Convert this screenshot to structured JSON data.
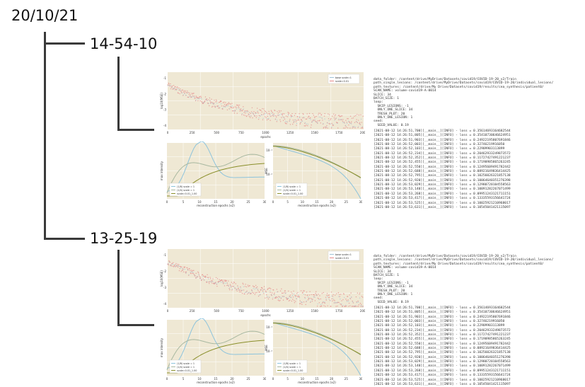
{
  "date_label": "20/10/21",
  "runs": [
    {
      "time_label": "14-54-10",
      "loss_plot": {
        "ylabel": "log10(MSE)",
        "xlabel": "epochs",
        "xticks": [
          "0",
          "250",
          "500",
          "750",
          "1000",
          "1250",
          "1500",
          "1750",
          "2000"
        ],
        "yticks": [
          "-1",
          "-2",
          "-3",
          "-4"
        ],
        "legend": [
          "base scale=1",
          "scale=0.01"
        ]
      },
      "intensity_plot": {
        "ylabel": "max intensity",
        "xlabel": "reconstruction epochs (x2)",
        "xticks": [
          "0",
          "5",
          "10",
          "15",
          "20",
          "25",
          "30"
        ],
        "legend": [
          "(1/8) scale = 1",
          "(1/4) scale = 1",
          "scale=0.01_1.00"
        ]
      },
      "mse_plot": {
        "ylabel": "MSE",
        "xlabel": "reconstruction epochs (x2)",
        "xticks": [
          "0",
          "5",
          "10",
          "15",
          "20",
          "25",
          "30"
        ],
        "yticks": [
          "10⁻¹",
          "10⁻²"
        ],
        "legend": [
          "(1/8) scale = 1",
          "(1/4) scale = 1",
          "scale=0.01_1.00"
        ]
      },
      "config_lines": [
        "data_folder: /content/drive/MyDrive/Datasets/covid19/COVID-19-20_v2/Train",
        "path_single_lesions: /content/drive/MyDrive/Datasets/covid19/COVID-19-20/individual_lesions/",
        "path_textures: /content/drive/My Drive/Datasets/covid19/results/cea_synthesis/patient0/",
        "SCAN_NAME: volume-covid19-A-0014",
        "SLICE: 34",
        "BATCH_SIZE: 1",
        "loop:",
        "  SKIP_LESIONS: -1",
        "  ONLY_ONE_SLICE: 34",
        "  TRESH_PLOT: 20",
        "  ONLY_ONE_LESION: 1",
        "seed:",
        "  SEED_VALUE: 0.19"
      ],
      "log_lines": [
        "[2021-08-12 14:26:51,700][__main__][INFO] - loss = 0.35614693164682544",
        "[2021-08-12 14:26:51,805][__main__][INFO] - loss = 0.35410730646624951",
        "[2021-08-12 14:26:51,903][__main__][INFO] - loss = 0.24922195807691846",
        "[2021-08-12 14:26:52,003][__main__][INFO] - loss = 0.32746219916050",
        "[2021-08-12 14:26:52,103][__main__][INFO] - loss = 0.22909903113899",
        "[2021-08-12 14:26:52,234][__main__][INFO] - loss = 0.20462933249873572",
        "[2021-08-12 14:26:52,352][__main__][INFO] - loss = 0.11727427491221237",
        "[2021-08-12 14:26:52,455][__main__][INFO] - loss = 0.17190985865263245",
        "[2021-08-12 14:26:52,550][__main__][INFO] - loss = 0.12495609491782442",
        "[2021-08-12 14:26:52,688][__main__][INFO] - loss = 0.08921649836414425",
        "[2021-08-12 14:26:52,795][__main__][INFO] - loss = 0.10256026321857138",
        "[2021-08-12 14:26:52,920][__main__][INFO] - loss = 0.10064640351276398",
        "[2021-08-12 14:26:53,029][__main__][INFO] - loss = 0.12980720104558563",
        "[2021-08-12 14:26:53,140][__main__][INFO] - loss = 0.10091282267071499",
        "[2021-08-12 14:26:53,268][__main__][INFO] - loss = 0.09951243121711151",
        "[2021-08-12 14:26:53,417][__main__][INFO] - loss = 0.13335593156641724",
        "[2021-08-12 14:26:53,525][__main__][INFO] - loss = 0.10025921210968017",
        "[2021-08-12 14:26:53,631][__main__][INFO] - loss = 0.10545041421115097"
      ]
    },
    {
      "time_label": "13-25-19",
      "loss_plot": {
        "ylabel": "log10(MSE)",
        "xlabel": "epochs",
        "xticks": [
          "0",
          "250",
          "500",
          "750",
          "1000",
          "1250",
          "1500",
          "1750",
          "2000"
        ],
        "yticks": [
          "-1",
          "-2",
          "-3",
          "-4"
        ],
        "legend": [
          "base scale=1",
          "scale=0.01"
        ]
      },
      "intensity_plot": {
        "ylabel": "max intensity",
        "xlabel": "reconstruction epochs (x2)",
        "xticks": [
          "0",
          "5",
          "10",
          "15",
          "20",
          "25",
          "30"
        ],
        "legend": [
          "(1/8) scale = 1",
          "(1/4) scale = 1",
          "scale=0.01_1.00"
        ]
      },
      "mse_plot": {
        "ylabel": "MSE",
        "xlabel": "reconstruction epochs (x2)",
        "xticks": [
          "0",
          "5",
          "10",
          "15",
          "20",
          "25",
          "30"
        ],
        "yticks": [
          "10⁻¹",
          "10⁻²"
        ],
        "legend": [
          "(1/8) scale = 1",
          "(1/4) scale = 1",
          "scale=0.01_1.00"
        ]
      },
      "config_lines": [
        "data_folder: /content/drive/MyDrive/Datasets/covid19/COVID-19-20_v2/Train",
        "path_single_lesions: /content/drive/MyDrive/Datasets/covid19/COVID-19-20/individual_lesions/",
        "path_textures: /content/drive/My Drive/Datasets/covid19/results/cea_synthesis/patient0/",
        "SCAN_NAME: volume-covid19-A-0014",
        "SLICE: 34",
        "BATCH_SIZE: 1",
        "loop:",
        "  SKIP_LESIONS: -1",
        "  ONLY_ONE_SLICE: 34",
        "  TRESH_PLOT: 20",
        "  ONLY_ONE_LESION: 1",
        "seed:",
        "  SEED_VALUE: 0.19"
      ],
      "log_lines": [
        "[2021-08-12 14:26:51,700][__main__][INFO] - loss = 0.35614693164682544",
        "[2021-08-12 14:26:51,805][__main__][INFO] - loss = 0.35410730646624951",
        "[2021-08-12 14:26:51,903][__main__][INFO] - loss = 0.24922195807691846",
        "[2021-08-12 14:26:52,003][__main__][INFO] - loss = 0.32746219916050",
        "[2021-08-12 14:26:52,103][__main__][INFO] - loss = 0.22909903113899",
        "[2021-08-12 14:26:52,234][__main__][INFO] - loss = 0.20462933249873572",
        "[2021-08-12 14:26:52,352][__main__][INFO] - loss = 0.11727427491221237",
        "[2021-08-12 14:26:52,455][__main__][INFO] - loss = 0.17190985865263245",
        "[2021-08-12 14:26:52,550][__main__][INFO] - loss = 0.12495609491782442",
        "[2021-08-12 14:26:52,688][__main__][INFO] - loss = 0.08921649836414425",
        "[2021-08-12 14:26:52,795][__main__][INFO] - loss = 0.10256026321857138",
        "[2021-08-12 14:26:52,920][__main__][INFO] - loss = 0.10064640351276398",
        "[2021-08-12 14:26:53,029][__main__][INFO] - loss = 0.12980720104558563",
        "[2021-08-12 14:26:53,140][__main__][INFO] - loss = 0.10091282267071499",
        "[2021-08-12 14:26:53,268][__main__][INFO] - loss = 0.09951243121711151",
        "[2021-08-12 14:26:53,417][__main__][INFO] - loss = 0.13335593156641724",
        "[2021-08-12 14:26:53,525][__main__][INFO] - loss = 0.10025921210968017",
        "[2021-08-12 14:26:53,631][__main__][INFO] - loss = 0.10545041421115097"
      ]
    }
  ],
  "colors": {
    "plot_bg": "#efe8d4",
    "tree_line": "#3a3a3a",
    "series_pink": "#e58a8a",
    "series_blue": "#9fc3d6",
    "series_olive": "#8a8f2a",
    "series_light_blue": "#8cc3dc",
    "series_grey": "#a8b8a0"
  }
}
